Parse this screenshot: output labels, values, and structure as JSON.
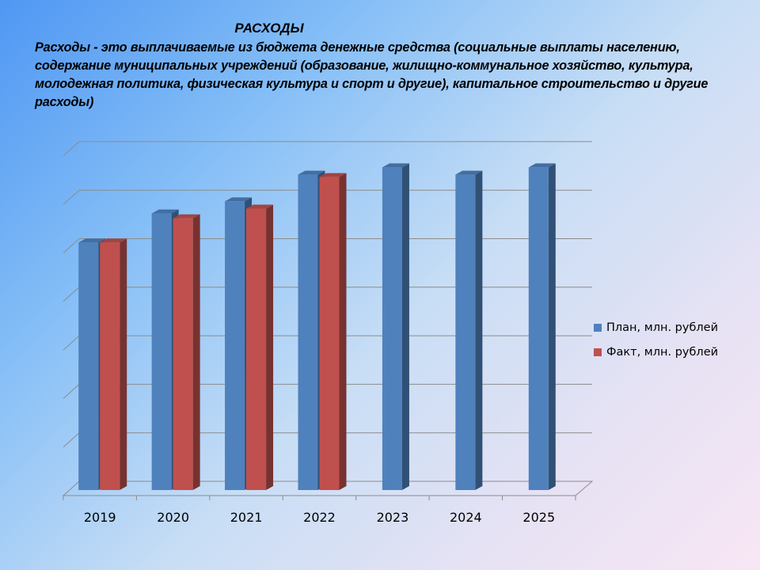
{
  "title": "РАСХОДЫ",
  "description": "Расходы - это выплачиваемые из бюджета денежные средства (социальные выплаты населению, содержание муниципальных учреждений (образование, жилищно-коммунальное хозяйство, культура, молодежная политика, физическая культура и спорт и другие), капитальное строительство и другие расходы)",
  "chart_data": {
    "type": "bar",
    "title": "",
    "xlabel": "",
    "ylabel": "",
    "categories": [
      "2019",
      "2020",
      "2021",
      "2022",
      "2023",
      "2024",
      "2025"
    ],
    "series": [
      {
        "name": "План, млн. рублей",
        "color": "#4f81bd",
        "values": [
          5.1,
          5.7,
          5.95,
          6.5,
          6.65,
          6.5,
          6.65
        ]
      },
      {
        "name": "Факт, млн. рублей",
        "color": "#c0504d",
        "values": [
          5.1,
          5.6,
          5.8,
          6.45,
          null,
          null,
          null
        ]
      }
    ],
    "ylim": [
      0,
      7
    ],
    "grid": true,
    "legend": "right"
  }
}
